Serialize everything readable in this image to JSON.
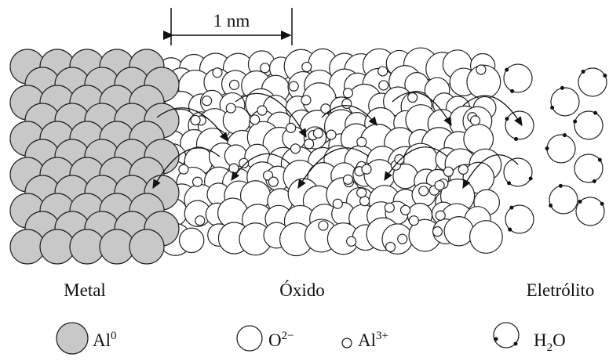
{
  "scale_bar": {
    "label": "1 nm"
  },
  "regions": [
    {
      "label": "Metal"
    },
    {
      "label": "Óxido"
    },
    {
      "label": "Eletrólito"
    }
  ],
  "legend": [
    {
      "symbol": "Al",
      "sup": "0"
    },
    {
      "symbol": "O",
      "sup": "2−"
    },
    {
      "symbol": "Al",
      "sup": "3+"
    },
    {
      "symbol": "H",
      "sub": "2",
      "suffix": "O"
    }
  ]
}
